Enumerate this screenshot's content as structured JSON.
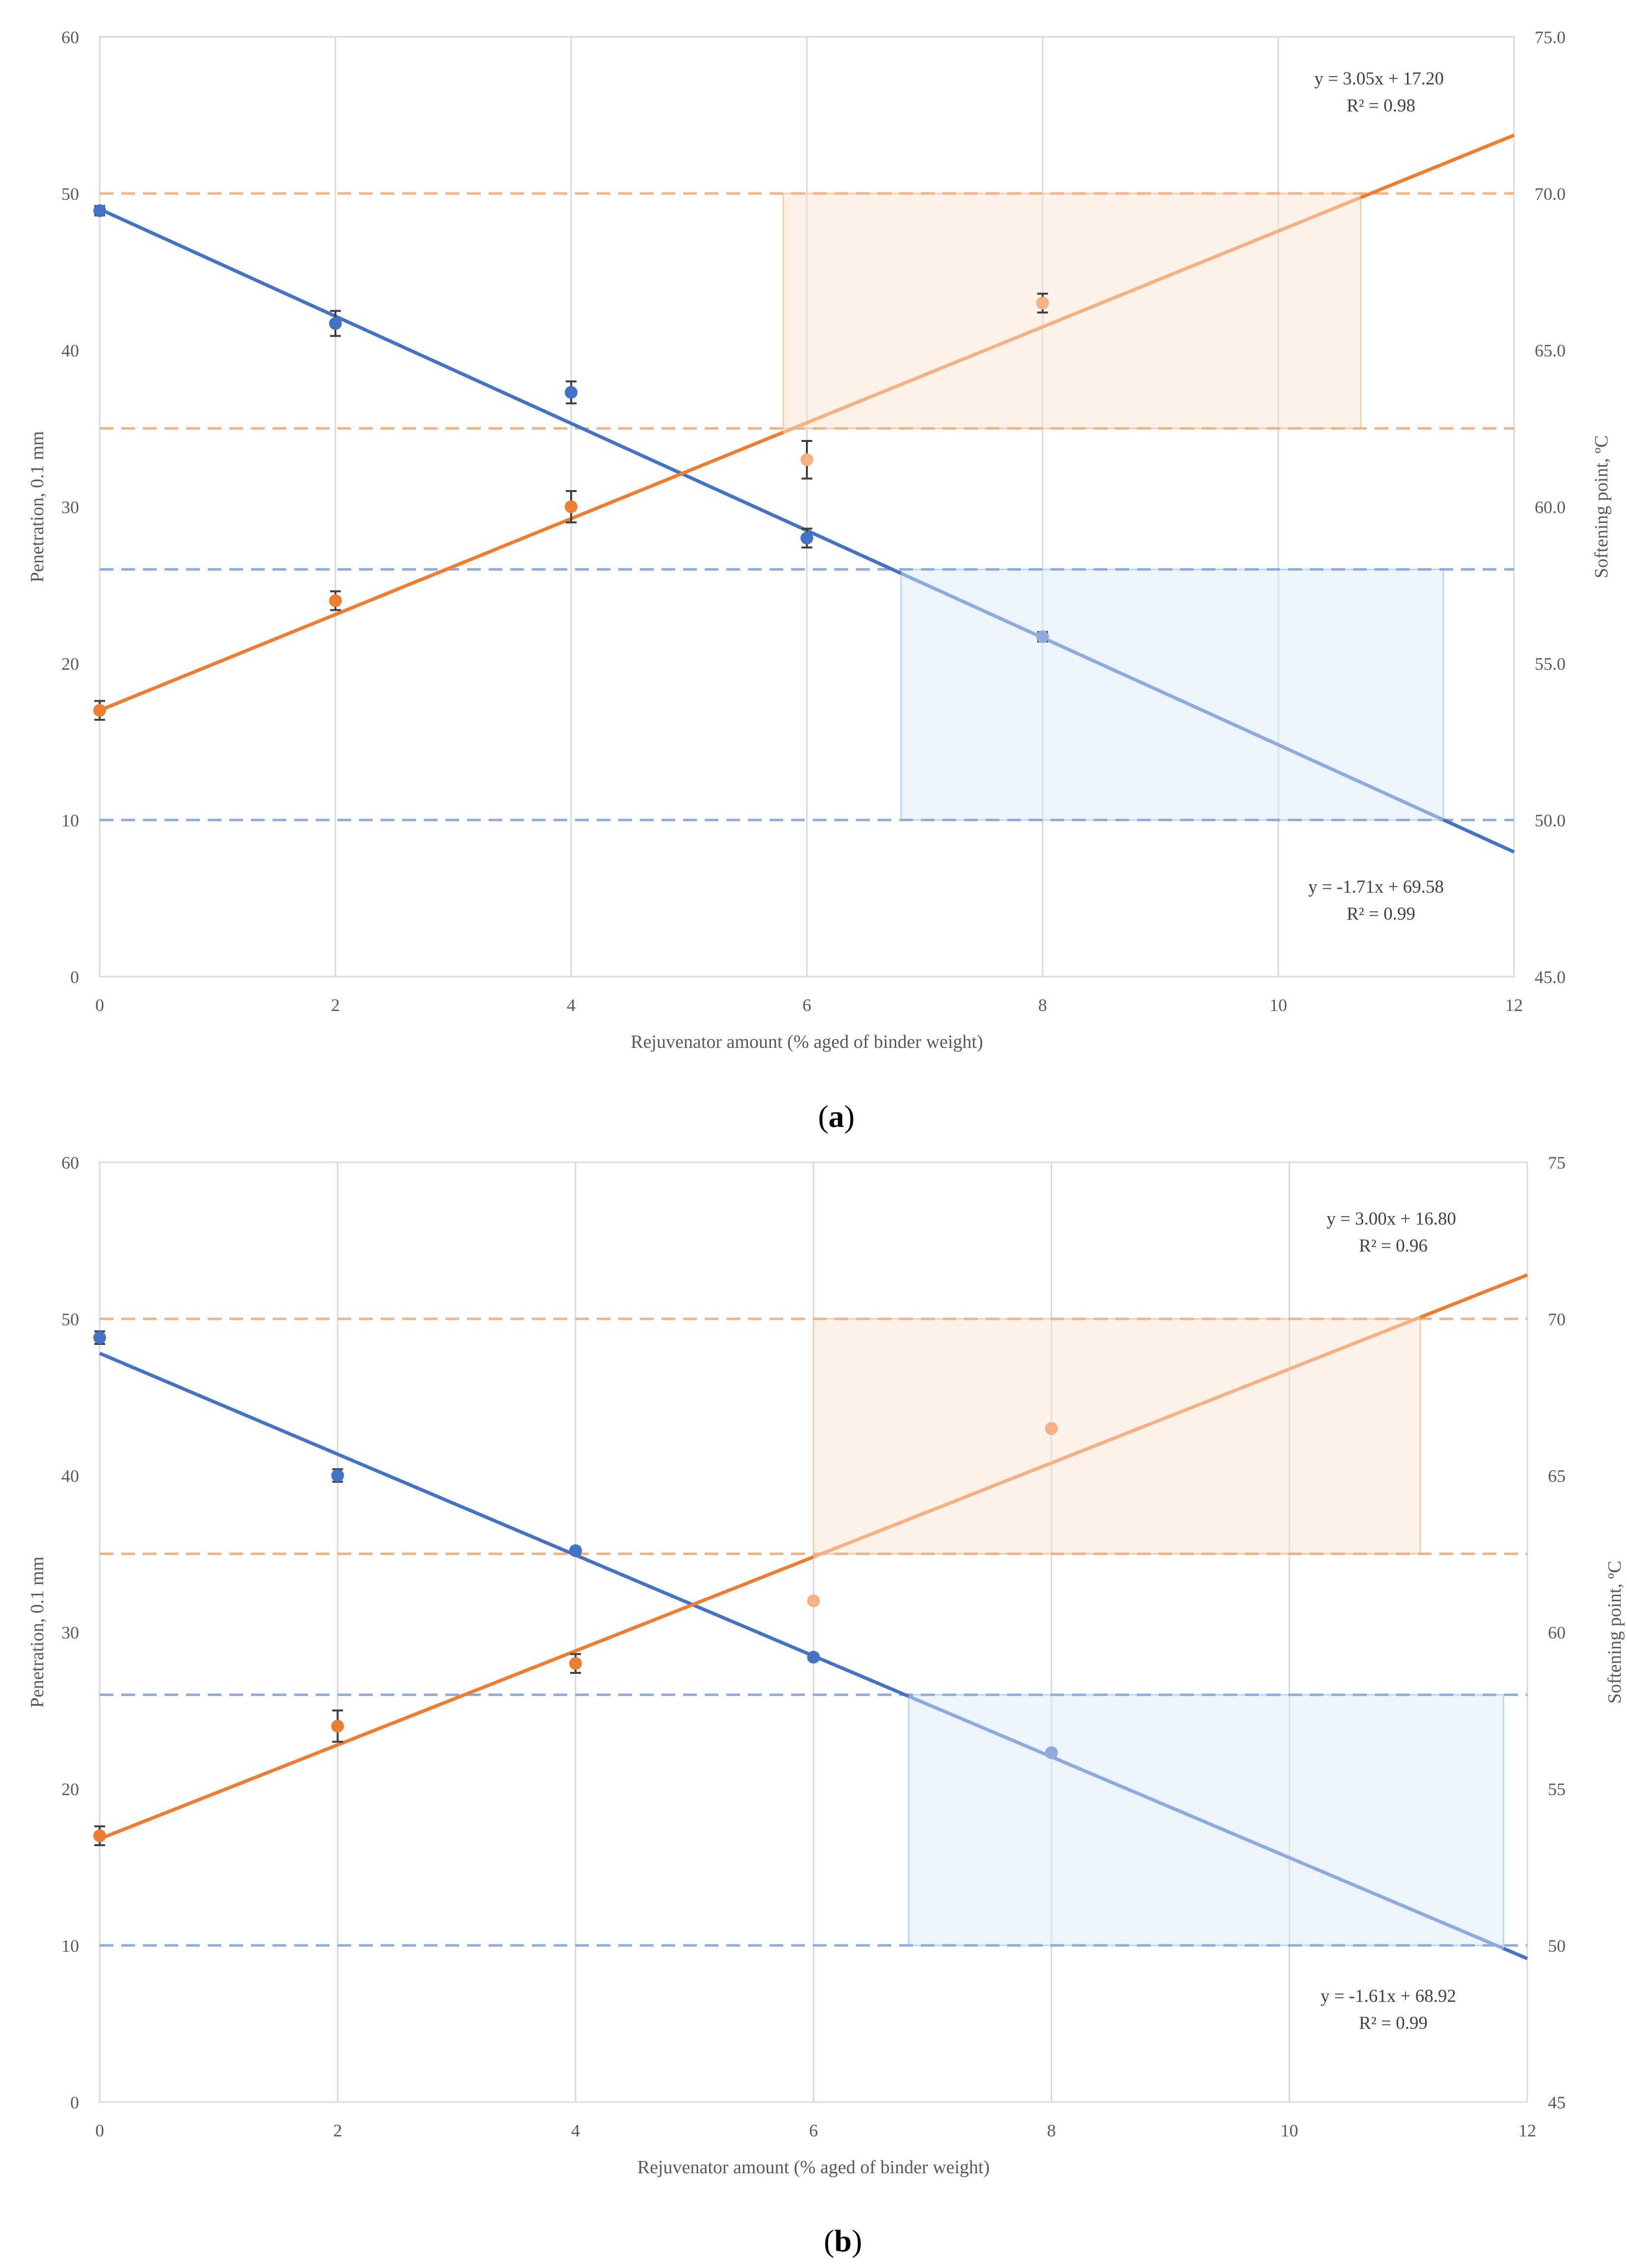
{
  "chart_data": [
    {
      "type": "scatter",
      "caption": {
        "open": "(",
        "letter": "a",
        "close": ")"
      },
      "xlabel": "Rejuvenator amount (% aged of binder weight)",
      "ylabel": "Penetration, 0.1 mm",
      "y2label": "Softening point, ºC",
      "x_ticks": [
        "0",
        "2",
        "4",
        "6",
        "8",
        "10",
        "12"
      ],
      "y_ticks": [
        "0",
        "10",
        "20",
        "30",
        "40",
        "50",
        "60"
      ],
      "y2_ticks": [
        "45.0",
        "50.0",
        "55.0",
        "60.0",
        "65.0",
        "70.0",
        "75.0"
      ],
      "xlim": [
        0,
        12
      ],
      "ylim": [
        0,
        60
      ],
      "y2lim": [
        45,
        75
      ],
      "grid": "vertical",
      "colors": {
        "penetration": "#4472C4",
        "softening": "#ED7D31",
        "penetration_light": "#8FAADC",
        "softening_light": "#F4B183",
        "error": "#404040"
      },
      "penetration": {
        "points": [
          {
            "x": 0,
            "y": 48.9,
            "err": 0.3
          },
          {
            "x": 2,
            "y": 41.7,
            "err": 0.8
          },
          {
            "x": 4,
            "y": 37.3,
            "err": 0.7
          },
          {
            "x": 6,
            "y": 28.0,
            "err": 0.6
          },
          {
            "x": 8,
            "y": 21.7,
            "err": 0.3
          }
        ],
        "trend": {
          "slope": -3.42,
          "intercept": 49.0
        },
        "equation": "y = -1.71x + 69.58",
        "r2": "R² = 0.99",
        "limits": [
          10,
          26
        ],
        "band": {
          "x0": 6.8,
          "x1": 11.4
        }
      },
      "softening": {
        "points": [
          {
            "x": 0,
            "y": 53.5,
            "err": 0.3
          },
          {
            "x": 2,
            "y": 57.0,
            "err": 0.3
          },
          {
            "x": 4,
            "y": 60.0,
            "err": 0.5
          },
          {
            "x": 6,
            "y": 61.5,
            "err": 0.6
          },
          {
            "x": 8,
            "y": 66.5,
            "err": 0.3
          }
        ],
        "trend": {
          "slope": 1.53,
          "intercept": 53.5
        },
        "equation": "y = 3.05x + 17.20",
        "r2": "R² = 0.98",
        "limits": [
          62.5,
          70
        ],
        "band": {
          "x0": 5.8,
          "x1": 10.7
        }
      }
    },
    {
      "type": "scatter",
      "caption": {
        "open": "(",
        "letter": "b",
        "close": ")"
      },
      "xlabel": "Rejuvenator amount (% aged of binder weight)",
      "ylabel": "Penetration, 0.1 mm",
      "y2label": "Softening point, ºC",
      "x_ticks": [
        "0",
        "2",
        "4",
        "6",
        "8",
        "10",
        "12"
      ],
      "y_ticks": [
        "0",
        "10",
        "20",
        "30",
        "40",
        "50",
        "60"
      ],
      "y2_ticks": [
        "45",
        "50",
        "55",
        "60",
        "65",
        "70",
        "75"
      ],
      "xlim": [
        0,
        12
      ],
      "ylim": [
        0,
        60
      ],
      "y2lim": [
        45,
        75
      ],
      "grid": "vertical",
      "colors": {
        "penetration": "#4472C4",
        "softening": "#ED7D31",
        "penetration_light": "#8FAADC",
        "softening_light": "#F4B183",
        "error": "#404040"
      },
      "penetration": {
        "points": [
          {
            "x": 0,
            "y": 48.8,
            "err": 0.4
          },
          {
            "x": 2,
            "y": 40.0,
            "err": 0.4
          },
          {
            "x": 4,
            "y": 35.2,
            "err": 0.2
          },
          {
            "x": 6,
            "y": 28.4,
            "err": 0.2
          },
          {
            "x": 8,
            "y": 22.3,
            "err": 0.1
          }
        ],
        "trend": {
          "slope": -3.22,
          "intercept": 47.8
        },
        "equation": "y = -1.61x + 68.92",
        "r2": "R² = 0.99",
        "limits": [
          10,
          26
        ],
        "band": {
          "x0": 6.8,
          "x1": 11.8
        }
      },
      "softening": {
        "points": [
          {
            "x": 0,
            "y": 53.5,
            "err": 0.3
          },
          {
            "x": 2,
            "y": 57.0,
            "err": 0.5
          },
          {
            "x": 4,
            "y": 59.0,
            "err": 0.3
          },
          {
            "x": 6,
            "y": 61.0,
            "err": 0.0
          },
          {
            "x": 8,
            "y": 66.5,
            "err": 0.0
          }
        ],
        "trend": {
          "slope": 1.5,
          "intercept": 53.4
        },
        "equation": "y = 3.00x + 16.80",
        "r2": "R² = 0.96",
        "limits": [
          62.5,
          70
        ],
        "band": {
          "x0": 6.0,
          "x1": 11.1
        }
      }
    }
  ]
}
